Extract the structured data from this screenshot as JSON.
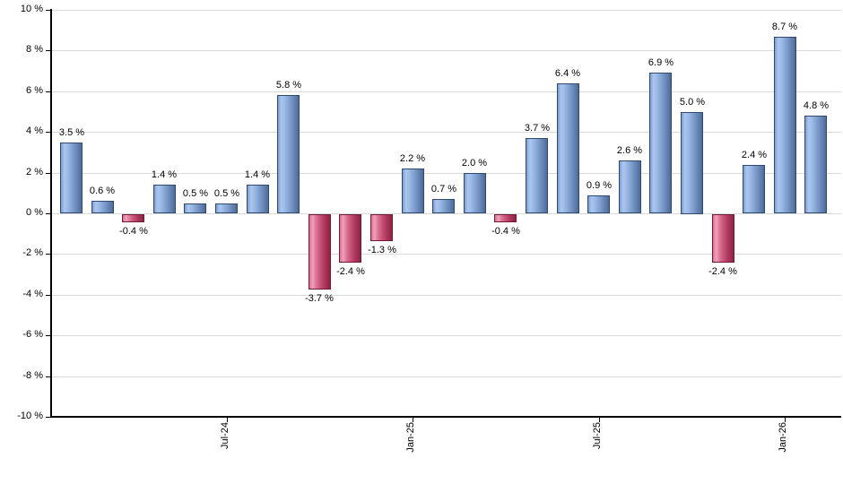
{
  "chart_data": {
    "type": "bar",
    "title": "",
    "xlabel": "",
    "ylabel": "",
    "ylim": [
      -10,
      10
    ],
    "grid": true,
    "value_label_format": "{value} %",
    "bars": [
      {
        "value": 3.5,
        "label": "3.5 %"
      },
      {
        "value": 0.6,
        "label": "0.6 %"
      },
      {
        "value": -0.4,
        "label": "-0.4 %"
      },
      {
        "value": 1.4,
        "label": "1.4 %"
      },
      {
        "value": 0.5,
        "label": "0.5 %"
      },
      {
        "value": 0.5,
        "label": "0.5 %"
      },
      {
        "value": 1.4,
        "label": "1.4 %"
      },
      {
        "value": 5.8,
        "label": "5.8 %"
      },
      {
        "value": -3.7,
        "label": "-3.7 %"
      },
      {
        "value": -2.4,
        "label": "-2.4 %"
      },
      {
        "value": -1.3,
        "label": "-1.3 %"
      },
      {
        "value": 2.2,
        "label": "2.2 %"
      },
      {
        "value": 0.7,
        "label": "0.7 %"
      },
      {
        "value": 2.0,
        "label": "2.0 %"
      },
      {
        "value": -0.4,
        "label": "-0.4 %"
      },
      {
        "value": 3.7,
        "label": "3.7 %"
      },
      {
        "value": 6.4,
        "label": "6.4 %"
      },
      {
        "value": 0.9,
        "label": "0.9 %"
      },
      {
        "value": 2.6,
        "label": "2.6 %"
      },
      {
        "value": 6.9,
        "label": "6.9 %"
      },
      {
        "value": 5.0,
        "label": "5.0 %"
      },
      {
        "value": -2.4,
        "label": "-2.4 %"
      },
      {
        "value": 2.4,
        "label": "2.4 %"
      },
      {
        "value": 8.7,
        "label": "8.7 %"
      },
      {
        "value": 4.8,
        "label": "4.8 %"
      }
    ],
    "x_ticks": [
      {
        "bar_index": 5,
        "label": "Jul-24"
      },
      {
        "bar_index": 11,
        "label": "Jan-25"
      },
      {
        "bar_index": 17,
        "label": "Jul-25"
      },
      {
        "bar_index": 23,
        "label": "Jan-26"
      }
    ],
    "y_ticks": [
      {
        "value": 10,
        "label": "10 %"
      },
      {
        "value": 8,
        "label": "8 %"
      },
      {
        "value": 6,
        "label": "6 %"
      },
      {
        "value": 4,
        "label": "4 %"
      },
      {
        "value": 2,
        "label": "2 %"
      },
      {
        "value": 0,
        "label": "0 %"
      },
      {
        "value": -2,
        "label": "-2 %"
      },
      {
        "value": -4,
        "label": "-4 %"
      },
      {
        "value": -6,
        "label": "-6 %"
      },
      {
        "value": -8,
        "label": "-8 %"
      },
      {
        "value": -10,
        "label": "-10 %"
      }
    ],
    "colors": {
      "positive_bar": "#7d9cd0",
      "negative_bar": "#c84a6e",
      "gridline": "#d9d9d9",
      "axis": "#000000",
      "label_text": "#000000",
      "background": "#ffffff"
    },
    "legend": null
  }
}
